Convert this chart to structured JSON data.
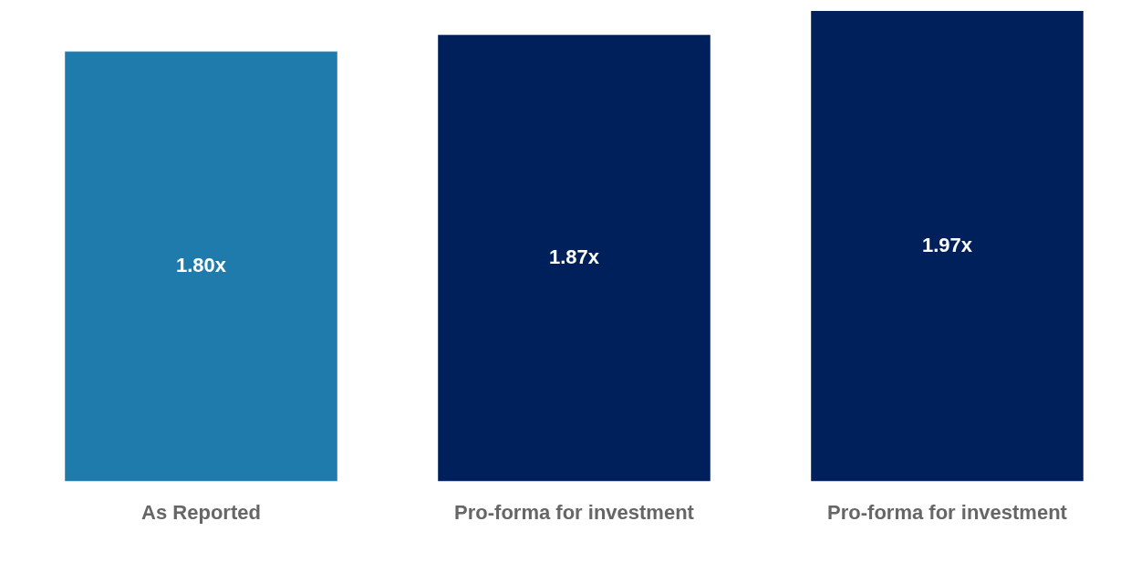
{
  "chart_data": {
    "type": "bar",
    "categories": [
      "As Reported",
      "Pro-forma for investment",
      "Pro-forma for investment"
    ],
    "values": [
      1.8,
      1.87,
      1.97
    ],
    "colors": [
      "#1f7bab",
      "#00205b",
      "#00205b"
    ],
    "value_labels": [
      "1.80x",
      "1.87x",
      "1.97x"
    ],
    "relative": false,
    "grid": false,
    "legend": false
  }
}
